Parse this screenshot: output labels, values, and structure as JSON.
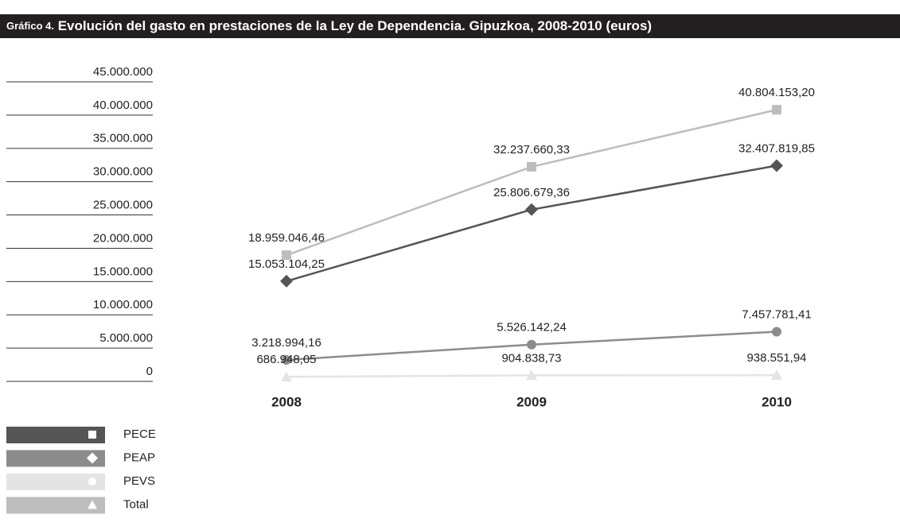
{
  "chart_data": {
    "type": "line",
    "figure_label": "Gráfico 4.",
    "title": "Evolución del gasto en prestaciones de la Ley de Dependencia. Gipuzkoa, 2008-2010 (euros)",
    "categories": [
      "2008",
      "2009",
      "2010"
    ],
    "ylim": [
      0,
      45000000
    ],
    "yticks": [
      0,
      {
        "value": 5000000,
        "label": "5.000.000"
      },
      {
        "value": 10000000,
        "label": "10.000.000"
      },
      {
        "value": 15000000,
        "label": "15.000.000"
      },
      {
        "value": 20000000,
        "label": "20.000.000"
      },
      {
        "value": 25000000,
        "label": "25.000.000"
      },
      {
        "value": 30000000,
        "label": "30.000.000"
      },
      {
        "value": 35000000,
        "label": "35.000.000"
      },
      {
        "value": 40000000,
        "label": "40.000.000"
      },
      {
        "value": 45000000,
        "label": "45.000.000"
      }
    ],
    "series": [
      {
        "name": "PECE",
        "color": "#555555",
        "marker": "diamond",
        "values": [
          15053104.25,
          25806679.36,
          32407819.85
        ],
        "value_labels": [
          "15.053.104,25",
          "25.806.679,36",
          "32.407.819,85"
        ]
      },
      {
        "name": "PEAP",
        "color": "#8c8c8c",
        "marker": "circle",
        "values": [
          3218994.16,
          5526142.24,
          7457781.41
        ],
        "value_labels": [
          "3.218.994,16",
          "5.526.142,24",
          "7.457.781,41"
        ]
      },
      {
        "name": "PEVS",
        "color": "#e4e4e4",
        "marker": "triangle",
        "values": [
          686948.05,
          904838.73,
          938551.94
        ],
        "value_labels": [
          "686.948,05",
          "904.838,73",
          "938.551,94"
        ]
      },
      {
        "name": "Total",
        "color": "#bdbdbd",
        "marker": "square",
        "values": [
          18959046.46,
          32237660.33,
          40804153.2
        ],
        "value_labels": [
          "18.959.046,46",
          "32.237.660,33",
          "40.804.153,20"
        ]
      }
    ]
  }
}
